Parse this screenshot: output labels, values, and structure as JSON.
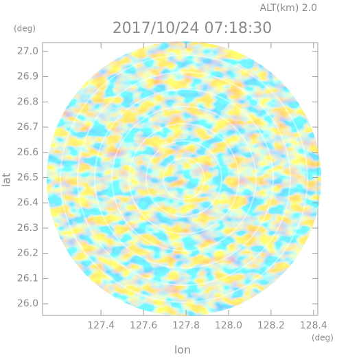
{
  "chart_data": {
    "type": "radar-ppi",
    "title": "2017/10/24 07:18:30",
    "subtitle": "ALT(km) 2.0",
    "x_label": "lon",
    "y_label": "lat",
    "x_unit": "(deg)",
    "y_unit": "(deg)",
    "xlim": [
      127.125,
      128.42
    ],
    "ylim": [
      25.954,
      27.035
    ],
    "xticks": [
      127.4,
      127.6,
      127.8,
      {
        "value": 128.0,
        "label": "128.0"
      },
      128.2,
      128.4
    ],
    "yticks": [
      {
        "value": 26.0,
        "label": "26.0"
      },
      26.1,
      26.2,
      26.3,
      26.4,
      26.5,
      26.6,
      26.7,
      26.8,
      26.9,
      {
        "value": 27.0,
        "label": "27.0"
      }
    ]
  }
}
